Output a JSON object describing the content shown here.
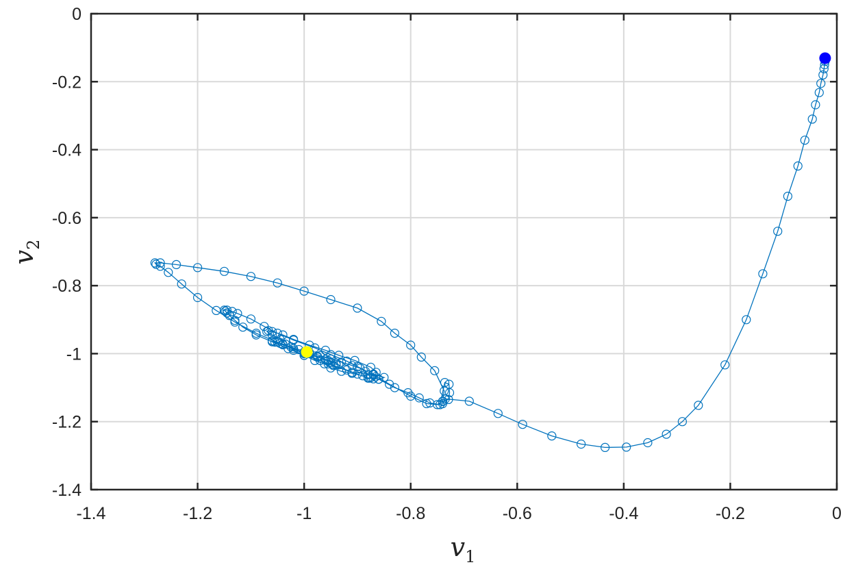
{
  "chart_data": {
    "type": "line",
    "title": "",
    "xlabel": "v",
    "xlabel_sub": "1",
    "ylabel": "v",
    "ylabel_sub": "2",
    "xlim": [
      -1.4,
      0
    ],
    "ylim": [
      -1.4,
      0
    ],
    "xticks": [
      -1.4,
      -1.2,
      -1,
      -0.8,
      -0.6,
      -0.4,
      -0.2,
      0
    ],
    "yticks": [
      0,
      -0.2,
      -0.4,
      -0.6,
      -0.8,
      -1,
      -1.2,
      -1.4
    ],
    "xtick_labels": [
      "-1.4",
      "-1.2",
      "-1",
      "-0.8",
      "-0.6",
      "-0.4",
      "-0.2",
      "0"
    ],
    "ytick_labels": [
      "0",
      "-0.2",
      "-0.4",
      "-0.6",
      "-0.8",
      "-1",
      "-1.2",
      "-1.4"
    ],
    "grid": true,
    "series": [
      {
        "marker": "circle-open",
        "color": "#0072bd",
        "x": [
          -0.022,
          -0.022,
          -0.023,
          -0.024,
          -0.026,
          -0.03,
          -0.033,
          -0.04,
          -0.046,
          -0.06,
          -0.073,
          -0.092,
          -0.111,
          -0.139,
          -0.17,
          -0.21,
          -0.26,
          -0.29,
          -0.32,
          -0.355,
          -0.395,
          -0.435,
          -0.48,
          -0.535,
          -0.59,
          -0.636,
          -0.69,
          -0.735,
          -0.74,
          -0.74,
          -0.729,
          -0.727,
          -0.728,
          -0.736,
          -0.745,
          -0.764,
          -0.784,
          -0.805,
          -0.83,
          -0.86,
          -0.877,
          -0.88,
          -0.89,
          -0.91,
          -0.93,
          -0.95,
          -0.962,
          -0.98,
          -1.0,
          -1.02,
          -1.035,
          -1.045,
          -1.06,
          -1.07,
          -1.067,
          -1.06,
          -1.04,
          -1.02,
          -0.99,
          -0.96,
          -0.935,
          -0.905,
          -0.875,
          -0.865,
          -0.866,
          -0.87,
          -0.88,
          -0.9,
          -0.92,
          -0.945,
          -0.97,
          -1.0,
          -1.03,
          -1.06,
          -1.09,
          -1.115,
          -1.13,
          -1.14,
          -1.145,
          -1.148,
          -1.15,
          -1.145,
          -1.135,
          -1.125,
          -1.1,
          -1.075,
          -1.05,
          -1.02,
          -0.98,
          -0.95,
          -0.92,
          -0.9,
          -0.87,
          -0.84,
          -0.8,
          -0.77,
          -0.75,
          -0.74,
          -0.737,
          -0.755,
          -0.78,
          -0.8,
          -0.83,
          -0.855,
          -0.9,
          -0.95,
          -1.0,
          -1.05,
          -1.1,
          -1.15,
          -1.2,
          -1.24,
          -1.27,
          -1.28,
          -1.278,
          -1.27,
          -1.255,
          -1.23,
          -1.2,
          -1.165,
          -1.13,
          -1.09,
          -1.045,
          -1.0,
          -0.955,
          -0.91,
          -0.87,
          -0.85,
          -0.86,
          -0.875,
          -0.88,
          -0.885,
          -0.895,
          -0.91,
          -0.93,
          -0.95,
          -0.97,
          -0.99,
          -1.01,
          -1.025,
          -1.04,
          -1.05,
          -1.06,
          -1.055,
          -1.04,
          -1.02,
          -1.0,
          -0.975,
          -0.955,
          -0.94,
          -0.935,
          -0.94,
          -0.95,
          -0.96,
          -0.975,
          -0.99,
          -1.0
        ],
        "y": [
          -0.131,
          -0.14,
          -0.15,
          -0.162,
          -0.18,
          -0.205,
          -0.232,
          -0.268,
          -0.31,
          -0.372,
          -0.448,
          -0.537,
          -0.64,
          -0.765,
          -0.9,
          -1.033,
          -1.152,
          -1.2,
          -1.237,
          -1.262,
          -1.275,
          -1.276,
          -1.266,
          -1.242,
          -1.208,
          -1.176,
          -1.14,
          -1.133,
          -1.147,
          -1.141,
          -1.135,
          -1.115,
          -1.09,
          -1.085,
          -1.15,
          -1.145,
          -1.13,
          -1.115,
          -1.1,
          -1.075,
          -1.072,
          -1.071,
          -1.065,
          -1.058,
          -1.052,
          -1.042,
          -1.03,
          -1.02,
          -1.005,
          -0.99,
          -0.972,
          -0.958,
          -0.945,
          -0.935,
          -0.932,
          -0.935,
          -0.945,
          -0.958,
          -0.975,
          -0.99,
          -1.005,
          -1.02,
          -1.04,
          -1.055,
          -1.068,
          -1.074,
          -1.072,
          -1.06,
          -1.048,
          -1.035,
          -1.02,
          -1.005,
          -0.985,
          -0.965,
          -0.945,
          -0.922,
          -0.902,
          -0.888,
          -0.88,
          -0.875,
          -0.872,
          -0.872,
          -0.876,
          -0.882,
          -0.898,
          -0.92,
          -0.94,
          -0.96,
          -0.983,
          -1.003,
          -1.022,
          -1.038,
          -1.062,
          -1.09,
          -1.125,
          -1.147,
          -1.15,
          -1.14,
          -1.11,
          -1.05,
          -1.01,
          -0.975,
          -0.94,
          -0.905,
          -0.866,
          -0.841,
          -0.816,
          -0.792,
          -0.773,
          -0.758,
          -0.747,
          -0.738,
          -0.733,
          -0.733,
          -0.737,
          -0.743,
          -0.761,
          -0.795,
          -0.835,
          -0.873,
          -0.907,
          -0.94,
          -0.97,
          -1.0,
          -1.03,
          -1.055,
          -1.06,
          -1.07,
          -1.075,
          -1.07,
          -1.062,
          -1.052,
          -1.043,
          -1.035,
          -1.025,
          -1.016,
          -1.006,
          -0.997,
          -0.988,
          -0.98,
          -0.972,
          -0.966,
          -0.962,
          -0.966,
          -0.974,
          -0.985,
          -0.998,
          -1.01,
          -1.02,
          -1.028,
          -1.033,
          -1.032,
          -1.025,
          -1.017,
          -1.008,
          -1.0,
          -0.995
        ]
      }
    ],
    "highlight_points": [
      {
        "x": -0.022,
        "y": -0.131,
        "color": "#0000ff"
      },
      {
        "x": -0.995,
        "y": -0.995,
        "color": "#ffff00"
      }
    ],
    "line_color": "#0072bd",
    "grid_color": "#d9d9d9",
    "axis_color": "#262626"
  }
}
